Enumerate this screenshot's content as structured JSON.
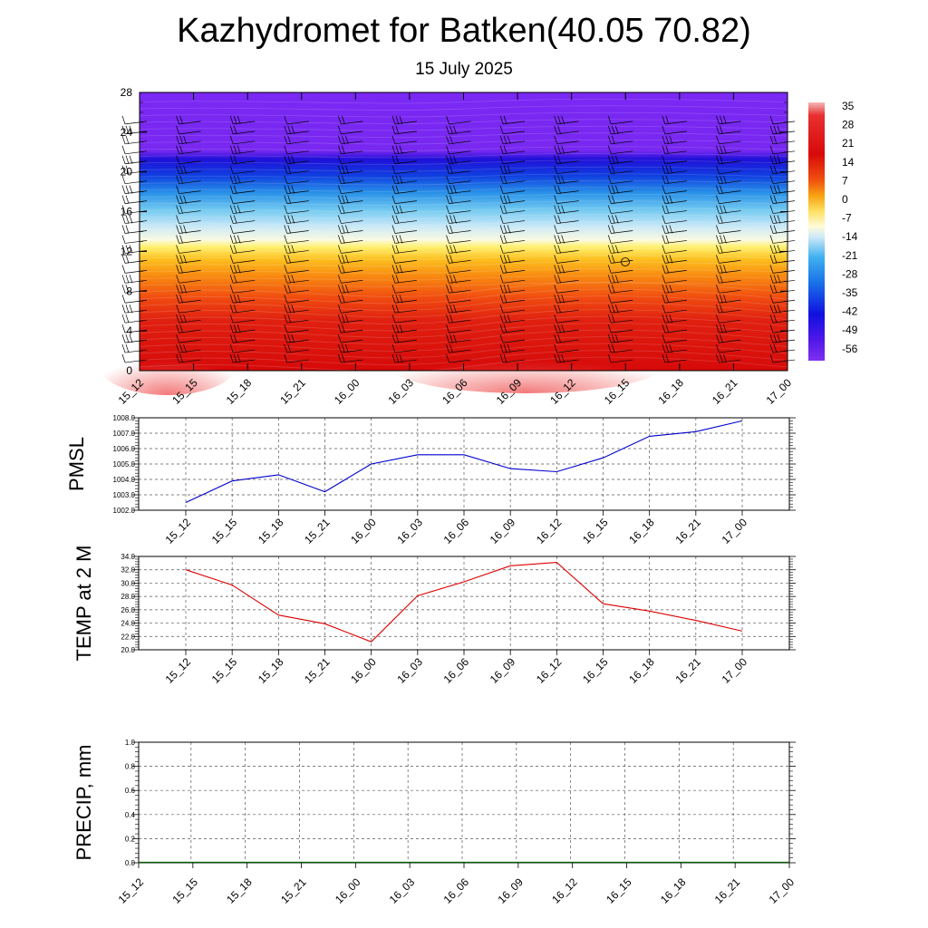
{
  "header": {
    "title": "Kazhydromet for Batken(40.05 70.82)",
    "subtitle": "15 July 2025"
  },
  "colors": {
    "pmsl_line": "#0000cc",
    "temp_line": "#dd0000",
    "precip_line": "#006600"
  },
  "chart_data": [
    {
      "id": "meteogram",
      "type": "heatmap",
      "x": [
        "15_12",
        "15_15",
        "15_18",
        "15_21",
        "16_00",
        "16_03",
        "16_06",
        "16_09",
        "16_12",
        "16_15",
        "16_18",
        "16_21",
        "17_00"
      ],
      "yticks": [
        0,
        4,
        8,
        12,
        16,
        20,
        24,
        28
      ],
      "ylim": [
        0,
        28
      ],
      "colorbar": {
        "labels": [
          "35",
          "28",
          "21",
          "14",
          "7",
          "0",
          "-7",
          "-14",
          "-21",
          "-28",
          "-35",
          "-42",
          "-49",
          "-56"
        ]
      }
    },
    {
      "id": "pmsl",
      "type": "line",
      "ylabel": "PMSL",
      "x": [
        "15_12",
        "15_15",
        "15_18",
        "15_21",
        "16_00",
        "16_03",
        "16_06",
        "16_09",
        "16_12",
        "16_15",
        "16_18",
        "16_21",
        "17_00"
      ],
      "yticks": [
        "1002.0",
        "1003.0",
        "1004.0",
        "1005.0",
        "1006.0",
        "1007.0",
        "1008.0"
      ],
      "ylim": [
        1002,
        1008
      ],
      "values": [
        1002.5,
        1003.9,
        1004.3,
        1003.2,
        1005.0,
        1005.6,
        1005.6,
        1004.7,
        1004.5,
        1005.4,
        1006.8,
        1007.1,
        1007.8
      ]
    },
    {
      "id": "temp",
      "type": "line",
      "ylabel": "TEMP at 2 M",
      "x": [
        "15_12",
        "15_15",
        "15_18",
        "15_21",
        "16_00",
        "16_03",
        "16_06",
        "16_09",
        "16_12",
        "16_15",
        "16_18",
        "16_21",
        "17_00"
      ],
      "yticks": [
        "20.0",
        "22.0",
        "24.0",
        "26.0",
        "28.0",
        "30.0",
        "32.0",
        "34.0"
      ],
      "ylim": [
        20,
        34
      ],
      "values": [
        32.0,
        29.7,
        25.2,
        23.9,
        21.2,
        28.1,
        30.2,
        32.6,
        33.1,
        26.9,
        25.8,
        24.4,
        22.8
      ]
    },
    {
      "id": "precip",
      "type": "line",
      "ylabel": "PRECIP, mm",
      "x": [
        "15_12",
        "15_15",
        "15_18",
        "15_21",
        "16_00",
        "16_03",
        "16_06",
        "16_09",
        "16_12",
        "16_15",
        "16_18",
        "16_21",
        "17_00"
      ],
      "yticks": [
        "0.0",
        "0.2",
        "0.4",
        "0.6",
        "0.8",
        "1.0"
      ],
      "ylim": [
        0,
        1
      ],
      "values": [
        0,
        0,
        0,
        0,
        0,
        0,
        0,
        0,
        0,
        0,
        0,
        0,
        0
      ]
    }
  ]
}
